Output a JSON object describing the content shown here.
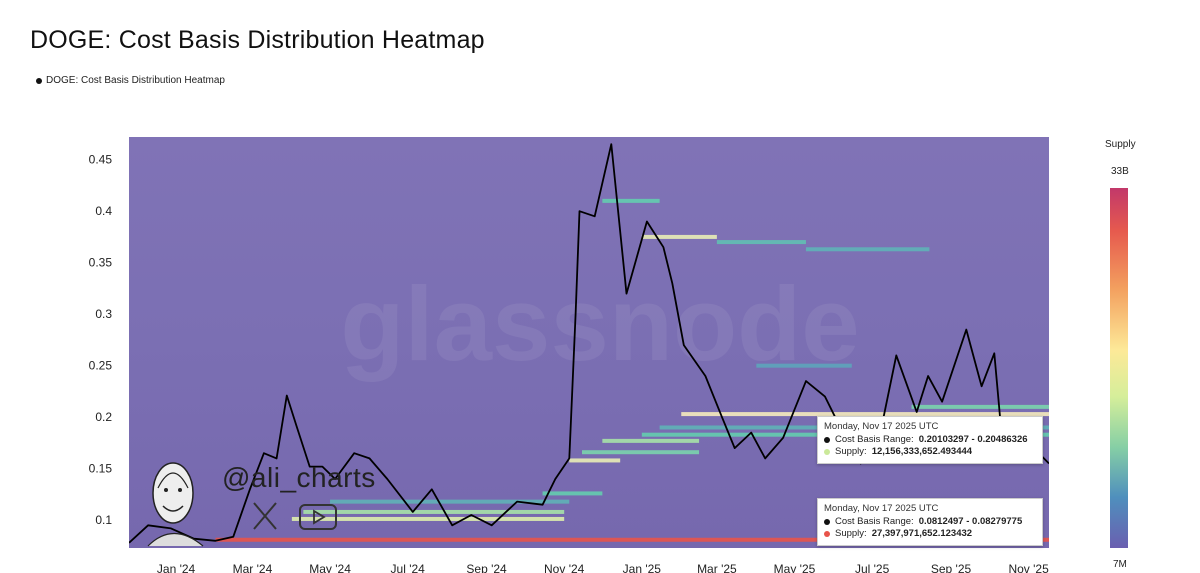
{
  "title": "DOGE: Cost Basis Distribution Heatmap",
  "legend_label": "DOGE: Cost Basis Distribution Heatmap",
  "watermark": "glassnode",
  "author_handle": "@ali_charts",
  "colorbar": {
    "title": "Supply",
    "max_label": "33B",
    "min_label": "7M"
  },
  "tooltips": [
    {
      "date": "Monday, Nov 17 2025 UTC",
      "range_label": "Cost Basis Range:",
      "range_value": "0.20103297 - 0.20486326",
      "supply_label": "Supply:",
      "supply_value": "12,156,333,652.493444",
      "supply_color": "#cbe99a"
    },
    {
      "date": "Monday, Nov 17 2025 UTC",
      "range_label": "Cost Basis Range:",
      "range_value": "0.0812497 - 0.08279775",
      "supply_label": "Supply:",
      "supply_value": "27,397,971,652.123432",
      "supply_color": "#e8544a"
    }
  ],
  "chart_data": {
    "type": "heatmap",
    "title": "DOGE: Cost Basis Distribution Heatmap",
    "y_ticks": [
      0.1,
      0.15,
      0.2,
      0.25,
      0.3,
      0.35,
      0.4,
      0.45
    ],
    "y_tick_labels": [
      "0.1",
      "0.15",
      "0.2",
      "0.25",
      "0.3",
      "0.35",
      "0.4",
      "0.45"
    ],
    "ylim": [
      0.073,
      0.472
    ],
    "x_tick_labels": [
      "Jan '24",
      "Mar '24",
      "May '24",
      "Jul '24",
      "Sep '24",
      "Nov '24",
      "Jan '25",
      "Mar '25",
      "May '25",
      "Jul '25",
      "Sep '25",
      "Nov '25"
    ],
    "x_tick_dates": [
      "2024-01-01",
      "2024-03-01",
      "2024-05-01",
      "2024-07-01",
      "2024-09-01",
      "2024-11-01",
      "2025-01-01",
      "2025-03-01",
      "2025-05-01",
      "2025-07-01",
      "2025-09-01",
      "2025-11-01"
    ],
    "x_range": [
      "2023-11-25",
      "2025-11-17"
    ],
    "colorbar": {
      "label": "Supply",
      "min": "7M",
      "max": "33B"
    },
    "background_color": "#7d6fb4",
    "price_series": {
      "color": "#000000",
      "points": [
        [
          "2023-11-25",
          0.078
        ],
        [
          "2023-12-10",
          0.095
        ],
        [
          "2023-12-28",
          0.092
        ],
        [
          "2024-01-15",
          0.082
        ],
        [
          "2024-02-01",
          0.08
        ],
        [
          "2024-02-15",
          0.084
        ],
        [
          "2024-02-28",
          0.13
        ],
        [
          "2024-03-10",
          0.165
        ],
        [
          "2024-03-20",
          0.16
        ],
        [
          "2024-03-28",
          0.221
        ],
        [
          "2024-04-05",
          0.19
        ],
        [
          "2024-04-15",
          0.152
        ],
        [
          "2024-04-25",
          0.152
        ],
        [
          "2024-05-05",
          0.14
        ],
        [
          "2024-05-20",
          0.165
        ],
        [
          "2024-06-01",
          0.16
        ],
        [
          "2024-06-15",
          0.14
        ],
        [
          "2024-07-05",
          0.108
        ],
        [
          "2024-07-20",
          0.13
        ],
        [
          "2024-08-05",
          0.095
        ],
        [
          "2024-08-20",
          0.105
        ],
        [
          "2024-09-05",
          0.095
        ],
        [
          "2024-09-25",
          0.118
        ],
        [
          "2024-10-15",
          0.115
        ],
        [
          "2024-10-25",
          0.14
        ],
        [
          "2024-11-05",
          0.16
        ],
        [
          "2024-11-10",
          0.3
        ],
        [
          "2024-11-13",
          0.4
        ],
        [
          "2024-11-25",
          0.395
        ],
        [
          "2024-12-08",
          0.465
        ],
        [
          "2024-12-20",
          0.32
        ],
        [
          "2025-01-05",
          0.39
        ],
        [
          "2025-01-18",
          0.365
        ],
        [
          "2025-01-25",
          0.33
        ],
        [
          "2025-02-03",
          0.27
        ],
        [
          "2025-02-20",
          0.24
        ],
        [
          "2025-03-05",
          0.2
        ],
        [
          "2025-03-15",
          0.17
        ],
        [
          "2025-03-28",
          0.185
        ],
        [
          "2025-04-08",
          0.16
        ],
        [
          "2025-04-22",
          0.18
        ],
        [
          "2025-05-10",
          0.235
        ],
        [
          "2025-05-25",
          0.22
        ],
        [
          "2025-06-10",
          0.18
        ],
        [
          "2025-06-22",
          0.155
        ],
        [
          "2025-07-05",
          0.17
        ],
        [
          "2025-07-20",
          0.26
        ],
        [
          "2025-08-05",
          0.205
        ],
        [
          "2025-08-14",
          0.24
        ],
        [
          "2025-08-25",
          0.215
        ],
        [
          "2025-09-13",
          0.285
        ],
        [
          "2025-09-25",
          0.23
        ],
        [
          "2025-10-05",
          0.262
        ],
        [
          "2025-10-11",
          0.18
        ],
        [
          "2025-10-25",
          0.2
        ],
        [
          "2025-11-05",
          0.17
        ],
        [
          "2025-11-17",
          0.155
        ]
      ]
    },
    "supply_bands": [
      {
        "price": 0.1012,
        "start": "2024-04-01",
        "end": "2024-11-01",
        "intensity": 0.85
      },
      {
        "price": 0.108,
        "start": "2024-04-10",
        "end": "2024-11-01",
        "intensity": 0.7
      },
      {
        "price": 0.118,
        "start": "2024-05-01",
        "end": "2024-11-05",
        "intensity": 0.45
      },
      {
        "price": 0.126,
        "start": "2024-10-15",
        "end": "2024-12-01",
        "intensity": 0.55
      },
      {
        "price": 0.158,
        "start": "2024-11-05",
        "end": "2024-12-15",
        "intensity": 0.9
      },
      {
        "price": 0.166,
        "start": "2024-11-15",
        "end": "2025-02-15",
        "intensity": 0.6
      },
      {
        "price": 0.177,
        "start": "2024-12-01",
        "end": "2025-02-15",
        "intensity": 0.7
      },
      {
        "price": 0.183,
        "start": "2025-01-01",
        "end": "2025-11-17",
        "intensity": 0.55
      },
      {
        "price": 0.19,
        "start": "2025-01-15",
        "end": "2025-11-17",
        "intensity": 0.45
      },
      {
        "price": 0.203,
        "start": "2025-02-01",
        "end": "2025-11-17",
        "intensity": 0.95
      },
      {
        "price": 0.21,
        "start": "2025-08-01",
        "end": "2025-11-17",
        "intensity": 0.6
      },
      {
        "price": 0.25,
        "start": "2025-04-01",
        "end": "2025-06-15",
        "intensity": 0.4
      },
      {
        "price": 0.375,
        "start": "2025-01-01",
        "end": "2025-03-01",
        "intensity": 0.9
      },
      {
        "price": 0.37,
        "start": "2025-03-01",
        "end": "2025-05-10",
        "intensity": 0.5
      },
      {
        "price": 0.363,
        "start": "2025-05-10",
        "end": "2025-08-15",
        "intensity": 0.45
      },
      {
        "price": 0.41,
        "start": "2024-12-01",
        "end": "2025-01-15",
        "intensity": 0.55
      },
      {
        "price": 0.081,
        "start": "2024-02-01",
        "end": "2025-11-17",
        "intensity": 1.0
      }
    ]
  }
}
